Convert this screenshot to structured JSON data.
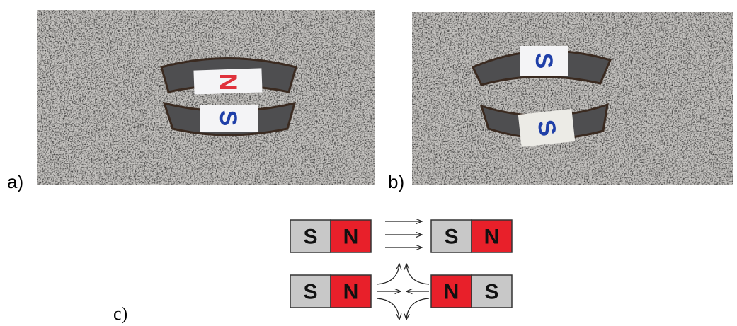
{
  "photos": [
    {
      "label": "a)",
      "tags": [
        {
          "text": "N",
          "color": "#e0323c"
        },
        {
          "text": "S",
          "color": "#1f3fa8"
        }
      ]
    },
    {
      "label": "b)",
      "tags": [
        {
          "text": "S",
          "color": "#1f3fa8"
        },
        {
          "text": "S",
          "color": "#1f3fa8"
        }
      ]
    }
  ],
  "diagram": {
    "label": "c)",
    "rows": [
      {
        "magnets": [
          [
            {
              "pole": "S",
              "color": "#c8c8c8"
            },
            {
              "pole": "N",
              "color": "#e8202a"
            }
          ],
          [
            {
              "pole": "S",
              "color": "#c8c8c8"
            },
            {
              "pole": "N",
              "color": "#e8202a"
            }
          ]
        ]
      },
      {
        "magnets": [
          [
            {
              "pole": "S",
              "color": "#c8c8c8"
            },
            {
              "pole": "N",
              "color": "#e8202a"
            }
          ],
          [
            {
              "pole": "N",
              "color": "#e8202a"
            },
            {
              "pole": "S",
              "color": "#c8c8c8"
            }
          ]
        ]
      }
    ]
  }
}
